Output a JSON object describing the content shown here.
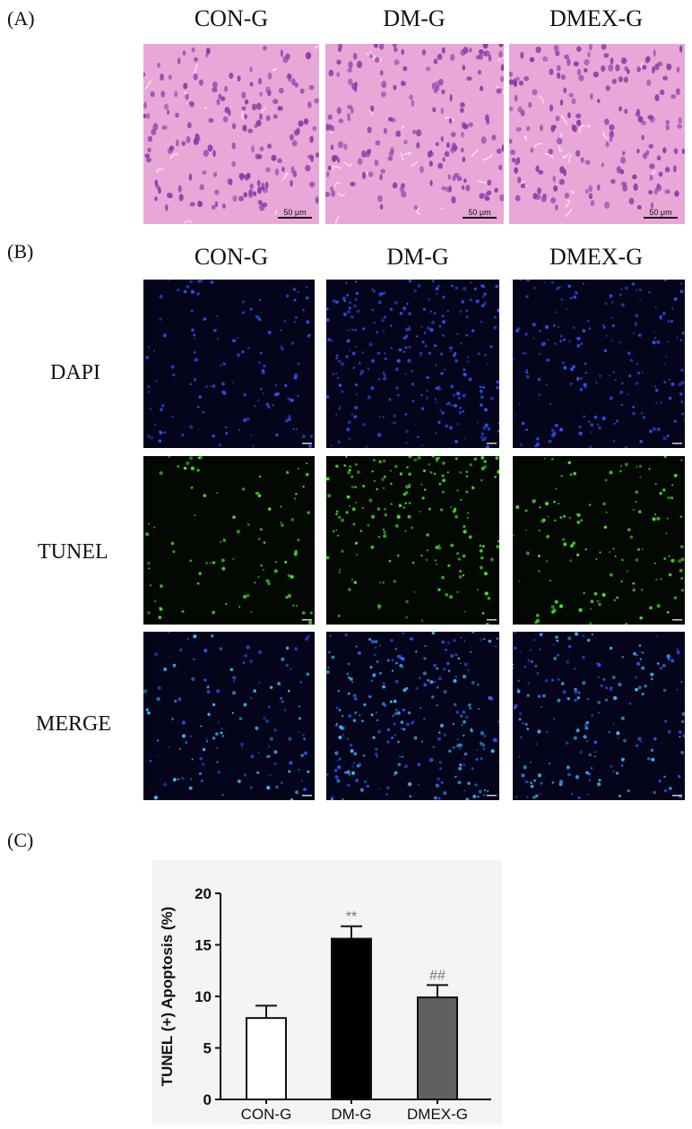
{
  "panels": {
    "a": {
      "letter": "(A)",
      "columns": [
        "CON-G",
        "DM-G",
        "DMEX-G"
      ],
      "scale_label": "50 μm"
    },
    "b": {
      "letter": "(B)",
      "columns": [
        "CON-G",
        "DM-G",
        "DMEX-G"
      ],
      "rows": [
        "DAPI",
        "TUNEL",
        "MERGE"
      ]
    },
    "c": {
      "letter": "(C)"
    }
  },
  "colors": {
    "he_background": "#e9a7d8",
    "he_nucleus": "#8a3aa6",
    "dapi_background": "#04051a",
    "dapi_nucleus": "#2f52ff",
    "tunel_background": "#030803",
    "tunel_nucleus": "#4be02a",
    "merge_nucleus": "#3fb8ff",
    "bar_con": "#ffffff",
    "bar_dm": "#000000",
    "bar_dmex": "#606060"
  },
  "chart_data": {
    "type": "bar",
    "categories": [
      "CON-G",
      "DM-G",
      "DMEX-G"
    ],
    "values": [
      7.9,
      15.6,
      9.9
    ],
    "errors": [
      1.2,
      1.2,
      1.2
    ],
    "annotations": [
      "",
      "**",
      "##"
    ],
    "ylabel": "TUNEL (+) Apoptosis (%)",
    "xlabel": "",
    "ylim": [
      0,
      20
    ],
    "yticks": [
      0,
      5,
      10,
      15,
      20
    ],
    "grid": false,
    "legend": "none"
  }
}
